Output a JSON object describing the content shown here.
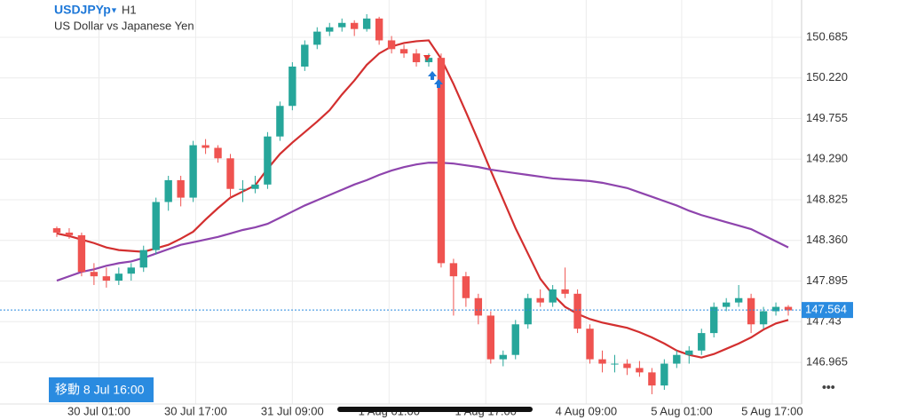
{
  "chart_data": {
    "type": "candlestick",
    "title": "USDJPYp",
    "timeframe": "H1",
    "subtitle": "US Dollar vs Japanese Yen",
    "cursor_label": "移動 8 Jul 16:00",
    "menu": "•••",
    "up_color": "#26a69a",
    "down_color": "#ef5350",
    "xlim": [
      -0.5,
      59.5
    ],
    "xticks": [
      {
        "value": 3.4,
        "label": "30 Jul 01:00"
      },
      {
        "value": 11.2,
        "label": "30 Jul 17:00"
      },
      {
        "value": 19.0,
        "label": "31 Jul 09:00"
      },
      {
        "value": 26.8,
        "label": "1 Aug 01:00"
      },
      {
        "value": 34.6,
        "label": "1 Aug 17:00"
      },
      {
        "value": 42.7,
        "label": "4 Aug 09:00"
      },
      {
        "value": 50.4,
        "label": "5 Aug 01:00"
      },
      {
        "value": 57.7,
        "label": "5 Aug 17:00"
      }
    ],
    "ylim": [
      146.488,
      151.112
    ],
    "yticks": [
      150.685,
      {
        "value": 150.22,
        "label": "150.220"
      },
      149.755,
      {
        "value": 149.29,
        "label": "149.290"
      },
      148.825,
      {
        "value": 148.36,
        "label": "148.360"
      },
      147.895,
      147.43,
      146.965
    ],
    "grid": true,
    "current_price": 147.564,
    "current_price_color": "#2a8be0",
    "open": [
      148.5,
      148.45,
      148.42,
      148.0,
      147.95,
      147.9,
      147.98,
      148.05,
      148.25,
      148.8,
      149.05,
      148.85,
      149.45,
      149.42,
      149.3,
      148.95,
      148.95,
      149.0,
      149.55,
      149.9,
      150.35,
      150.6,
      150.75,
      150.8,
      150.85,
      150.78,
      150.9,
      150.65,
      150.55,
      150.5,
      150.4,
      150.45,
      148.1,
      147.95,
      147.7,
      147.5,
      147.0,
      147.05,
      147.4,
      147.7,
      147.65,
      147.8,
      147.75,
      147.35,
      147.0,
      146.95,
      146.95,
      146.9,
      146.85,
      146.7,
      146.95,
      147.05,
      147.1,
      147.3,
      147.6,
      147.65,
      147.7,
      147.4,
      147.55,
      147.6
    ],
    "high": [
      148.52,
      148.5,
      148.45,
      148.1,
      148.05,
      148.05,
      148.1,
      148.3,
      148.85,
      149.1,
      149.1,
      149.5,
      149.52,
      149.45,
      149.35,
      149.05,
      149.1,
      149.6,
      149.95,
      150.4,
      150.65,
      150.8,
      150.85,
      150.9,
      150.88,
      150.95,
      150.92,
      150.7,
      150.6,
      150.55,
      150.5,
      150.5,
      148.15,
      148.0,
      147.75,
      147.55,
      147.1,
      147.45,
      147.75,
      147.8,
      147.85,
      148.05,
      147.8,
      147.4,
      147.1,
      147.05,
      147.0,
      146.98,
      146.9,
      147.0,
      147.1,
      147.15,
      147.35,
      147.65,
      147.7,
      147.85,
      147.75,
      147.6,
      147.65,
      147.62
    ],
    "low": [
      148.4,
      148.38,
      147.95,
      147.85,
      147.82,
      147.85,
      147.9,
      148.0,
      148.2,
      148.7,
      148.75,
      148.8,
      149.35,
      149.25,
      148.85,
      148.8,
      148.9,
      148.95,
      149.5,
      149.85,
      150.3,
      150.55,
      150.7,
      150.75,
      150.7,
      150.75,
      150.6,
      150.5,
      150.45,
      150.35,
      150.35,
      148.05,
      147.5,
      147.6,
      147.4,
      146.95,
      146.92,
      147.0,
      147.35,
      147.6,
      147.6,
      147.7,
      147.3,
      146.95,
      146.85,
      146.85,
      146.82,
      146.8,
      146.6,
      146.65,
      146.9,
      146.95,
      147.05,
      147.25,
      147.55,
      147.6,
      147.3,
      147.35,
      147.5,
      147.5
    ],
    "close": [
      148.45,
      148.42,
      148.0,
      147.95,
      147.9,
      147.98,
      148.05,
      148.25,
      148.8,
      149.05,
      148.85,
      149.45,
      149.42,
      149.3,
      148.95,
      148.95,
      149.0,
      149.55,
      149.9,
      150.35,
      150.6,
      150.75,
      150.8,
      150.85,
      150.78,
      150.9,
      150.65,
      150.55,
      150.5,
      150.4,
      150.45,
      148.1,
      147.95,
      147.7,
      147.5,
      147.0,
      147.05,
      147.4,
      147.7,
      147.65,
      147.8,
      147.75,
      147.35,
      147.0,
      146.95,
      146.95,
      146.9,
      146.85,
      146.7,
      146.95,
      147.05,
      147.1,
      147.3,
      147.6,
      147.65,
      147.7,
      147.4,
      147.55,
      147.6,
      147.56
    ],
    "series": [
      {
        "color": "#d32f2f",
        "values": [
          148.44,
          148.41,
          148.37,
          148.33,
          148.28,
          148.25,
          148.24,
          148.23,
          148.27,
          148.31,
          148.38,
          148.46,
          148.6,
          148.73,
          148.85,
          148.92,
          148.99,
          149.18,
          149.35,
          149.48,
          149.6,
          149.72,
          149.85,
          150.03,
          150.19,
          150.37,
          150.5,
          150.58,
          150.62,
          150.64,
          150.65,
          150.44,
          150.15,
          149.83,
          149.5,
          149.16,
          148.83,
          148.5,
          148.21,
          147.92,
          147.74,
          147.6,
          147.52,
          147.46,
          147.42,
          147.39,
          147.36,
          147.31,
          147.25,
          147.18,
          147.1,
          147.05,
          147.02,
          147.06,
          147.12,
          147.18,
          147.25,
          147.34,
          147.41,
          147.45
        ]
      },
      {
        "color": "#8e44ad",
        "values": [
          147.9,
          147.95,
          148.0,
          148.03,
          148.07,
          148.1,
          148.12,
          148.16,
          148.21,
          148.26,
          148.31,
          148.34,
          148.37,
          148.4,
          148.44,
          148.48,
          148.51,
          148.55,
          148.62,
          148.69,
          148.76,
          148.82,
          148.88,
          148.94,
          149.0,
          149.05,
          149.11,
          149.16,
          149.2,
          149.23,
          149.25,
          149.25,
          149.24,
          149.22,
          149.2,
          149.17,
          149.15,
          149.13,
          149.11,
          149.09,
          149.07,
          149.06,
          149.05,
          149.04,
          149.02,
          148.99,
          148.96,
          148.91,
          148.86,
          148.81,
          148.76,
          148.7,
          148.65,
          148.61,
          148.57,
          148.53,
          148.49,
          148.42,
          148.35,
          148.28
        ]
      }
    ]
  }
}
